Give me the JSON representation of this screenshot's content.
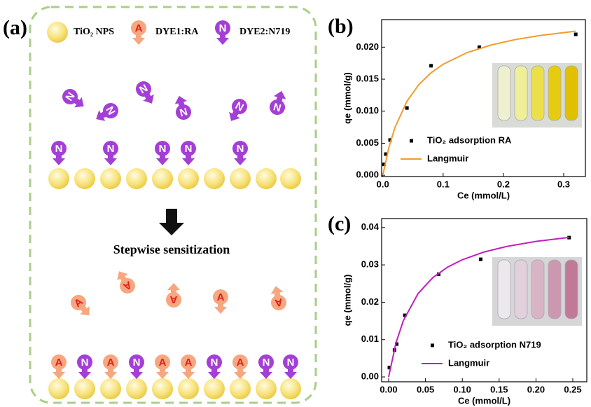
{
  "diagram": {
    "panel_label": "(a)",
    "legend": [
      "TiO₂ NPS",
      "DYE1:RA",
      "DYE2:N719"
    ],
    "icon_a": "A",
    "icon_n": "N",
    "step_label": "Stepwise sensitization"
  },
  "chart_data": [
    {
      "type": "scatter",
      "panel_label": "(b)",
      "x_label": "Ce (mmol/L)",
      "y_label": "qe (mmol/g)",
      "xlim": [
        -0.002,
        0.336
      ],
      "ylim": [
        -0.0002,
        0.0243
      ],
      "xticks": [
        {
          "value": 0,
          "label": "0.0"
        },
        0.1,
        0.2,
        0.3
      ],
      "yticks": [
        {
          "value": 0,
          "label": "0.000"
        },
        0.005,
        {
          "value": 0.01,
          "label": "0.010"
        },
        0.015,
        {
          "value": 0.02,
          "label": "0.020"
        }
      ],
      "series": [
        {
          "name": "TiO₂ adsorption RA",
          "color": "#000000",
          "type": "scatter",
          "x": [
            0.002,
            0.005,
            0.012,
            0.04,
            0.08,
            0.16,
            0.32
          ],
          "values": [
            0.0017,
            0.0033,
            0.0055,
            0.0105,
            0.0171,
            0.02,
            0.022
          ]
        },
        {
          "name": "Langmuir",
          "color": "#f39c2b",
          "type": "line",
          "x": [
            0,
            0.01,
            0.02,
            0.04,
            0.06,
            0.08,
            0.1,
            0.14,
            0.18,
            0.22,
            0.26,
            0.32
          ],
          "values": [
            0,
            0.00433,
            0.00743,
            0.01156,
            0.01418,
            0.016,
            0.01733,
            0.01916,
            0.02035,
            0.02119,
            0.02181,
            0.02249
          ]
        }
      ]
    },
    {
      "type": "scatter",
      "panel_label": "(c)",
      "x_label": "Ce (mmol/L)",
      "y_label": "qe (mmol/g)",
      "xlim": [
        -0.0095,
        0.269
      ],
      "ylim": [
        -0.0013,
        0.0424
      ],
      "xticks": [
        {
          "value": 0,
          "label": "0.00"
        },
        0.05,
        {
          "value": 0.1,
          "label": "0.10"
        },
        0.15,
        {
          "value": 0.2,
          "label": "0.20"
        },
        0.25
      ],
      "yticks": [
        {
          "value": 0,
          "label": "0.00"
        },
        0.01,
        0.02,
        0.03,
        0.04
      ],
      "series": [
        {
          "name": "TiO₂ adsorption N719",
          "color": "#000000",
          "type": "scatter",
          "x": [
            0.001,
            0.008,
            0.011,
            0.022,
            0.068,
            0.125,
            0.245
          ],
          "values": [
            0.0025,
            0.0072,
            0.0088,
            0.0165,
            0.0275,
            0.0315,
            0.0373
          ]
        },
        {
          "name": "Langmuir",
          "color": "#c020c0",
          "type": "line",
          "x": [
            0,
            0.01,
            0.02,
            0.04,
            0.06,
            0.08,
            0.1,
            0.13,
            0.16,
            0.2,
            0.245
          ],
          "values": [
            0,
            0.00914,
            0.01508,
            0.02233,
            0.02659,
            0.02939,
            0.03138,
            0.03347,
            0.03492,
            0.03628,
            0.03735
          ]
        }
      ]
    }
  ]
}
